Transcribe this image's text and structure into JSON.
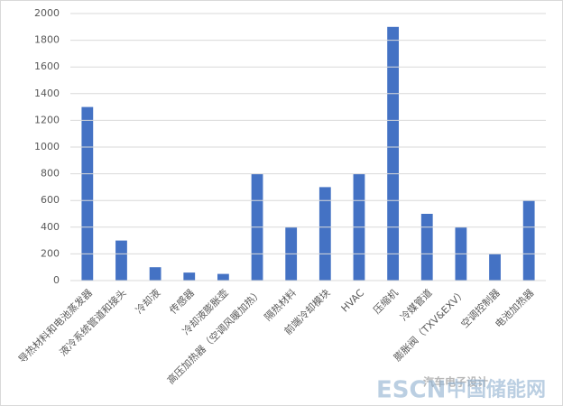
{
  "chart_data": {
    "type": "bar",
    "categories": [
      "导热材料和电池蒸发器",
      "液冷系统管道和接头",
      "冷却液",
      "传感器",
      "冷却液膨胀壶",
      "高压加热器（空调风暖加热）",
      "隔热材料",
      "前端冷却模块",
      "HVAC",
      "压缩机",
      "冷媒管道",
      "膨胀阀（TXV&EXV）",
      "空调控制器",
      "电池加热器"
    ],
    "values": [
      1300,
      300,
      100,
      60,
      50,
      800,
      400,
      700,
      800,
      1900,
      500,
      400,
      200,
      600
    ],
    "color": "#4472c4",
    "ylim": [
      0,
      2000
    ],
    "yticks": [
      0,
      200,
      400,
      600,
      800,
      1000,
      1200,
      1400,
      1600,
      1800,
      2000
    ],
    "grid": true,
    "watermark": [
      "汽车电子设计",
      "ESCN",
      "中国储能网"
    ]
  }
}
